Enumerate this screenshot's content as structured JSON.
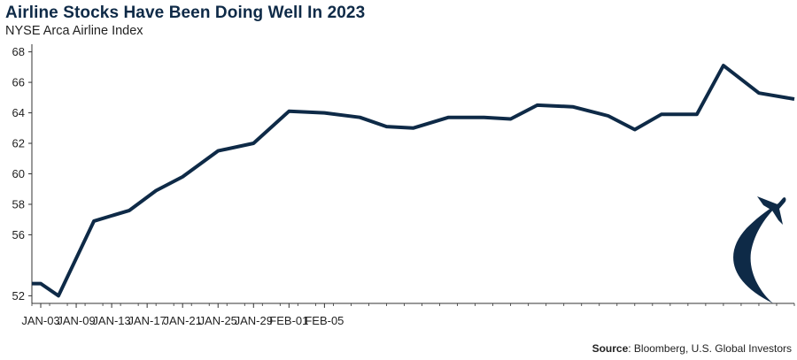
{
  "header": {
    "title": "Airline Stocks Have Been Doing Well In 2023",
    "subtitle": "NYSE Arca Airline Index"
  },
  "footer": {
    "source_label": "Source",
    "source_text": ": Bloomberg, U.S. Global Investors"
  },
  "colors": {
    "line": "#0e2a47",
    "axis": "#333333",
    "icon": "#0e2a47"
  },
  "icon": "airplane-takeoff-icon",
  "chart_data": {
    "type": "line",
    "title": "Airline Stocks Have Been Doing Well In 2023",
    "subtitle": "NYSE Arca Airline Index",
    "xlabel": "",
    "ylabel": "",
    "ylim": [
      51.5,
      68.5
    ],
    "yticks": [
      52,
      56,
      58,
      60,
      62,
      64,
      66,
      68
    ],
    "xticks": [
      "JAN-03",
      "JAN-09",
      "JAN-13",
      "JAN-17",
      "JAN-21",
      "JAN-25",
      "JAN-29",
      "FEB-01",
      "FEB-05"
    ],
    "xtick_index": [
      1,
      5,
      9,
      13,
      17,
      21,
      25,
      29,
      33
    ],
    "grid": false,
    "legend": "none",
    "series": [
      {
        "values": [
          52.8,
          52.8,
          52.0,
          56.9,
          57.6,
          58.9,
          59.8,
          61.5,
          62.0,
          64.1,
          64.0,
          63.7,
          63.1,
          63.0,
          63.7,
          63.7,
          63.6,
          64.5,
          64.4,
          63.8,
          62.9,
          63.9,
          63.9,
          67.1,
          65.3,
          64.9
        ]
      }
    ],
    "x_days": [
      0,
      1,
      3,
      7,
      11,
      14,
      17,
      21,
      25,
      29,
      33,
      37,
      40,
      43,
      47,
      51,
      54,
      57,
      61,
      65,
      68,
      71,
      75,
      78,
      82,
      86
    ]
  }
}
